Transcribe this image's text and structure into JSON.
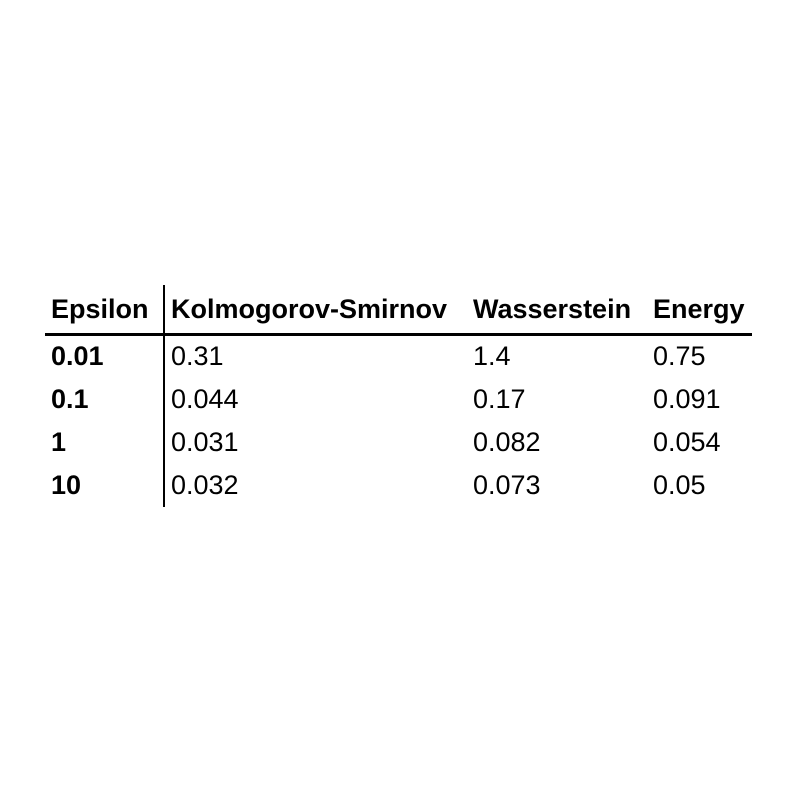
{
  "page": {
    "background": "#ffffff",
    "text_color": "#000000",
    "rule_color": "#000000"
  },
  "table": {
    "index_header": "Epsilon",
    "columns": [
      "Kolmogorov-Smirnov",
      "Wasserstein",
      "Energy"
    ],
    "rows": [
      {
        "epsilon": "0.01",
        "kolmogorov_smirnov": "0.31",
        "wasserstein": "1.4",
        "energy": "0.75"
      },
      {
        "epsilon": "0.1",
        "kolmogorov_smirnov": "0.044",
        "wasserstein": "0.17",
        "energy": "0.091"
      },
      {
        "epsilon": "1",
        "kolmogorov_smirnov": "0.031",
        "wasserstein": "0.082",
        "energy": "0.054"
      },
      {
        "epsilon": "10",
        "kolmogorov_smirnov": "0.032",
        "wasserstein": "0.073",
        "energy": "0.05"
      }
    ]
  },
  "chart_data": {
    "type": "table",
    "title": "",
    "columns": [
      "Epsilon",
      "Kolmogorov-Smirnov",
      "Wasserstein",
      "Energy"
    ],
    "rows": [
      [
        "0.01",
        0.31,
        1.4,
        0.75
      ],
      [
        "0.1",
        0.044,
        0.17,
        0.091
      ],
      [
        "1",
        0.031,
        0.082,
        0.054
      ],
      [
        "10",
        0.032,
        0.073,
        0.05
      ]
    ],
    "notes": "Header row bold; Epsilon index column bold; single vertical rule after Epsilon column; single horizontal rule under header row; no other gridlines."
  }
}
